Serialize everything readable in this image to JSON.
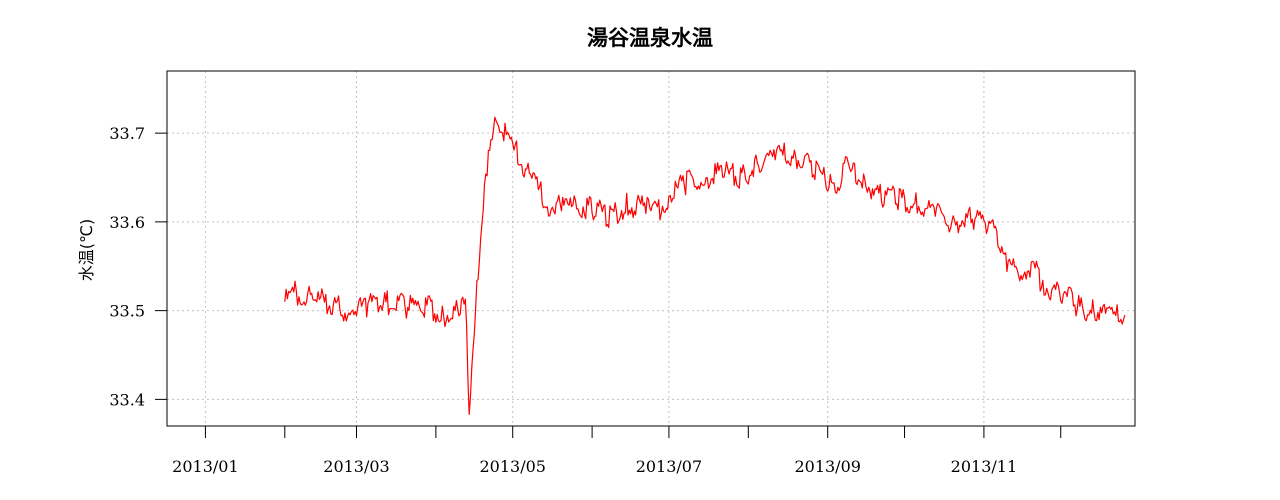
{
  "chart_data": {
    "type": "line",
    "title": "湯谷温泉水温",
    "xlabel": "",
    "ylabel": "水温(℃)",
    "x_ticks": [
      "2013/01",
      "2013/02",
      "2013/03",
      "2013/04",
      "2013/05",
      "2013/06",
      "2013/07",
      "2013/08",
      "2013/09",
      "2013/10",
      "2013/11",
      "2013/12"
    ],
    "x_tick_labels": [
      "2013/01",
      "",
      "2013/03",
      "",
      "2013/05",
      "",
      "2013/07",
      "",
      "2013/09",
      "",
      "2013/11",
      ""
    ],
    "xlim": [
      "2012-12-17",
      "2013-12-30"
    ],
    "ylim": [
      33.37,
      33.77
    ],
    "y_ticks": [
      33.4,
      33.5,
      33.6,
      33.7
    ],
    "grid": true,
    "colors": {
      "series": "#ff0000",
      "grid": "#c0c0c0",
      "axis": "#000000"
    },
    "series": [
      {
        "x": [
          "2013-02-01",
          "2013-02-05",
          "2013-02-12",
          "2013-02-20",
          "2013-02-26",
          "2013-03-05",
          "2013-03-12",
          "2013-03-20",
          "2013-03-28",
          "2013-04-04",
          "2013-04-10",
          "2013-04-12",
          "2013-04-13",
          "2013-04-14",
          "2013-04-17",
          "2013-04-20",
          "2013-04-23",
          "2013-04-25",
          "2013-04-28",
          "2013-05-02",
          "2013-05-05",
          "2013-05-10",
          "2013-05-15",
          "2013-05-20",
          "2013-05-25",
          "2013-06-01",
          "2013-06-08",
          "2013-06-15",
          "2013-06-22",
          "2013-06-26",
          "2013-07-01",
          "2013-07-08",
          "2013-07-15",
          "2013-07-22",
          "2013-07-29",
          "2013-08-05",
          "2013-08-12",
          "2013-08-19",
          "2013-08-26",
          "2013-09-02",
          "2013-09-04",
          "2013-09-08",
          "2013-09-15",
          "2013-09-22",
          "2013-09-29",
          "2013-10-06",
          "2013-10-13",
          "2013-10-20",
          "2013-10-27",
          "2013-11-03",
          "2013-11-06",
          "2013-11-10",
          "2013-11-13",
          "2013-11-17",
          "2013-11-20",
          "2013-11-24",
          "2013-12-01",
          "2013-12-08",
          "2013-12-14",
          "2013-12-18",
          "2013-12-23",
          "2013-12-26"
        ],
        "y": [
          33.51,
          33.52,
          33.515,
          33.505,
          33.5,
          33.505,
          33.51,
          33.505,
          33.505,
          33.495,
          33.5,
          33.505,
          33.495,
          33.38,
          33.52,
          33.65,
          33.69,
          33.72,
          33.7,
          33.68,
          33.665,
          33.64,
          33.62,
          33.615,
          33.62,
          33.615,
          33.605,
          33.62,
          33.615,
          33.61,
          33.63,
          33.645,
          33.65,
          33.655,
          33.65,
          33.665,
          33.675,
          33.675,
          33.66,
          33.645,
          33.64,
          33.66,
          33.645,
          33.63,
          33.625,
          33.62,
          33.61,
          33.6,
          33.605,
          33.6,
          33.59,
          33.555,
          33.545,
          33.545,
          33.55,
          33.53,
          33.52,
          33.505,
          33.5,
          33.495,
          33.5,
          33.495
        ]
      }
    ]
  }
}
